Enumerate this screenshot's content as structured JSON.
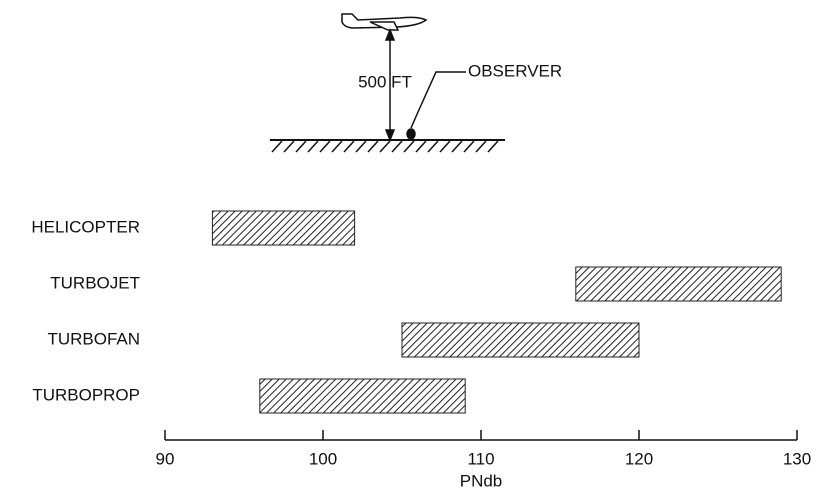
{
  "chart_data": {
    "type": "range-bar",
    "annotations": [
      "500 FT",
      "OBSERVER"
    ],
    "categories": [
      "HELICOPTER",
      "TURBOJET",
      "TURBOFAN",
      "TURBOPROP"
    ],
    "low": [
      93,
      116,
      105,
      96
    ],
    "high": [
      102,
      129,
      120,
      109
    ],
    "xlim": [
      90,
      130
    ],
    "xticks": [
      90,
      100,
      110,
      120,
      130
    ],
    "xlabel": "PNdb",
    "color": "#222"
  }
}
